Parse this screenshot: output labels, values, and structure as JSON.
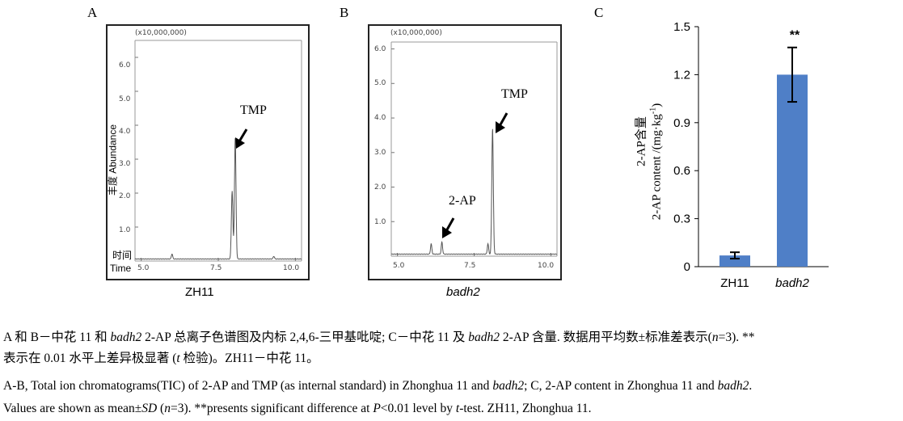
{
  "panels": {
    "a": {
      "letter": "A",
      "scale_label": "(x10,000,000)",
      "y_axis_label": "丰度 Abundance",
      "x_axis_label_top": "时间",
      "x_axis_label_bottom": "Time",
      "y_ticks": [
        "6.0",
        "5.0",
        "4.0",
        "3.0",
        "2.0",
        "1.0"
      ],
      "x_ticks": [
        "5.0",
        "7.5",
        "10.0"
      ],
      "peak_label": "TMP",
      "sample_label": "ZH11"
    },
    "b": {
      "letter": "B",
      "scale_label": "(x10,000,000)",
      "y_ticks": [
        "6.0",
        "5.0",
        "4.0",
        "3.0",
        "2.0",
        "1.0"
      ],
      "x_ticks": [
        "5.0",
        "7.5",
        "10.0"
      ],
      "peak_label_tmp": "TMP",
      "peak_label_2ap": "2-AP",
      "sample_label": "badh2"
    },
    "c": {
      "letter": "C",
      "y_label_line1": "2-AP含量",
      "y_label_line2_main": "2-AP content /(mg·kg",
      "y_label_line2_sup": "-1",
      "y_label_line2_end": ")"
    }
  },
  "chart_data": [
    {
      "type": "line",
      "panel": "A",
      "description_series": "TIC",
      "x_ticks": [
        5.0,
        7.5,
        10.0
      ],
      "xlim": [
        4.8,
        10.2
      ],
      "ylim": [
        0,
        6.5
      ],
      "y_unit": "x10,000,000",
      "peaks": [
        {
          "x": 6.0,
          "y": 0.15
        },
        {
          "x": 7.95,
          "y": 2.0
        },
        {
          "x": 8.05,
          "y": 3.55
        },
        {
          "x": 9.3,
          "y": 0.08
        }
      ],
      "annotations": [
        "TMP"
      ]
    },
    {
      "type": "line",
      "panel": "B",
      "x_ticks": [
        5.0,
        7.5,
        10.0
      ],
      "xlim": [
        4.8,
        10.2
      ],
      "ylim": [
        0,
        6.2
      ],
      "y_unit": "x10,000,000",
      "peaks": [
        {
          "x": 6.1,
          "y": 0.3
        },
        {
          "x": 6.45,
          "y": 0.35
        },
        {
          "x": 7.95,
          "y": 0.3
        },
        {
          "x": 8.1,
          "y": 3.65
        }
      ],
      "annotations": [
        "2-AP",
        "TMP"
      ]
    },
    {
      "type": "bar",
      "panel": "C",
      "categories": [
        "ZH11",
        "badh2"
      ],
      "values": [
        0.07,
        1.2
      ],
      "errors": [
        0.02,
        0.17
      ],
      "ylim": [
        0,
        1.5
      ],
      "y_ticks": [
        "0",
        "0.3",
        "0.6",
        "0.9",
        "1.2",
        "1.5"
      ],
      "significance": [
        "",
        "**"
      ],
      "bar_color": "#4f7fc7"
    }
  ],
  "caption": {
    "line1_a": "A 和 B－中花 11 和 ",
    "line1_b": "badh2",
    "line1_c": " 2-AP 总离子色谱图及内标 2,4,6-三甲基吡啶; C－中花 11 及 ",
    "line1_d": "badh2",
    "line1_e": " 2-AP 含量. 数据用平均数±标准差表示(",
    "line1_f": "n",
    "line1_g": "=3). **",
    "line2_a": "表示在 0.01 水平上差异极显著 (",
    "line2_b": "t",
    "line2_c": " 检验)。ZH11－中花 11。",
    "line3_a": "A-B, Total ion chromatograms(TIC) of 2-AP and TMP (as internal standard) in Zhonghua 11 and ",
    "line3_b": "badh2",
    "line3_c": "; C, 2-AP content in Zhonghua 11 and ",
    "line3_d": "badh2",
    "line3_e": ".",
    "line4_a": "Values are shown as mean±",
    "line4_b": "SD",
    "line4_c": " (",
    "line4_d": "n",
    "line4_e": "=3).    **presents significant difference at ",
    "line4_f": "P",
    "line4_g": "<0.01 level by ",
    "line4_h": "t",
    "line4_i": "-test. ZH11, Zhonghua 11."
  }
}
